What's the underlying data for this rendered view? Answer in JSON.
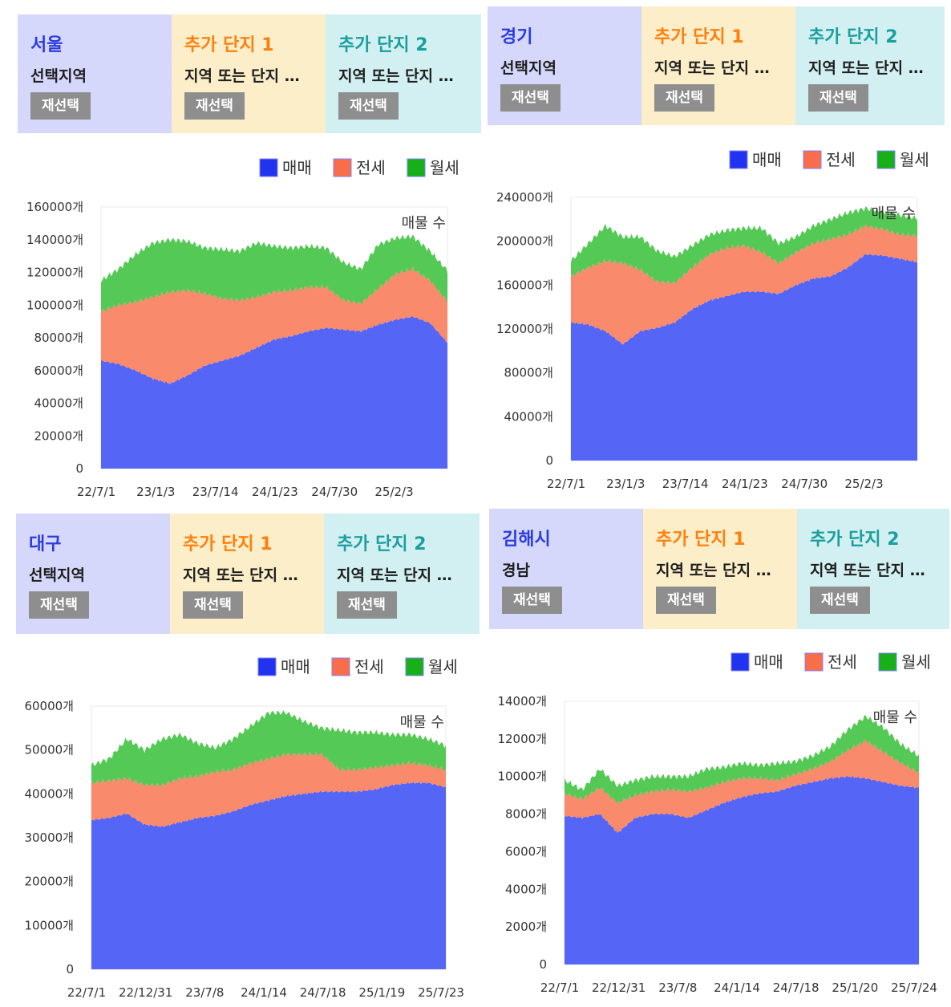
{
  "legend": [
    {
      "label": "매매",
      "color": "#2233f0"
    },
    {
      "label": "전세",
      "color": "#f86e4a"
    },
    {
      "label": "월세",
      "color": "#18b018"
    }
  ],
  "fill_colors": {
    "매매": "#5566f7",
    "전세": "#f98a6c",
    "월세": "#55c955"
  },
  "panels": [
    {
      "id": "seoul",
      "header": {
        "main": {
          "title": "서울",
          "subtitle": "선택지역",
          "button": "재선택",
          "title_color": "#2a3be0"
        },
        "add1": {
          "title": "추가 단지 1",
          "subtitle": "지역 또는 단지 …",
          "button": "재선택",
          "title_color": "#ff7f0e"
        },
        "add2": {
          "title": "추가 단지 2",
          "subtitle": "지역 또는 단지 …",
          "button": "재선택",
          "title_color": "#1a9e9e"
        }
      },
      "chart_data": {
        "type": "area",
        "stacked": true,
        "annotation": "매물 수",
        "y_ticks": [
          "160000개",
          "140000개",
          "120000개",
          "100000개",
          "80000개",
          "60000개",
          "40000개",
          "20000개",
          "0"
        ],
        "ylim": [
          0,
          160000
        ],
        "x_ticks": [
          "22/7/1",
          "23/1/3",
          "23/7/14",
          "24/1/23",
          "24/7/30",
          "25/2/3"
        ],
        "t": [
          0,
          6,
          12,
          18,
          24,
          30,
          36,
          42,
          48,
          54,
          60,
          66,
          72,
          78,
          84,
          90,
          96,
          102,
          108,
          114,
          120
        ],
        "series": [
          {
            "name": "매매",
            "values": [
              66000,
              64000,
              60000,
              55000,
              52000,
              57000,
              63000,
              66000,
              69000,
              74000,
              79000,
              81000,
              84000,
              86000,
              85000,
              84000,
              88000,
              91000,
              93000,
              89000,
              77000
            ]
          },
          {
            "name": "전세",
            "values": [
              30000,
              36000,
              42000,
              50000,
              56000,
              52000,
              44000,
              38000,
              34000,
              31000,
              29000,
              28000,
              27000,
              25000,
              18000,
              17000,
              22000,
              28000,
              29000,
              26000,
              25000
            ]
          },
          {
            "name": "월세",
            "values": [
              19000,
              22000,
              29000,
              33000,
              32000,
              30000,
              28000,
              30000,
              30000,
              33000,
              28000,
              26000,
              25000,
              24000,
              23000,
              21000,
              27000,
              22000,
              20000,
              18000,
              19000
            ]
          }
        ]
      }
    },
    {
      "id": "gyeonggi",
      "header": {
        "main": {
          "title": "경기",
          "subtitle": "선택지역",
          "button": "재선택",
          "title_color": "#2a3be0"
        },
        "add1": {
          "title": "추가 단지 1",
          "subtitle": "지역 또는 단지 …",
          "button": "재선택",
          "title_color": "#ff7f0e"
        },
        "add2": {
          "title": "추가 단지 2",
          "subtitle": "지역 또는 단지 …",
          "button": "재선택",
          "title_color": "#1a9e9e"
        }
      },
      "chart_data": {
        "type": "area",
        "stacked": true,
        "annotation": "매물 수",
        "y_ticks": [
          "240000개",
          "200000개",
          "160000개",
          "120000개",
          "80000개",
          "40000개",
          "0"
        ],
        "ylim": [
          0,
          240000
        ],
        "x_ticks": [
          "22/7/1",
          "23/1/3",
          "23/7/14",
          "24/1/23",
          "24/7/30",
          "25/2/3"
        ],
        "t": [
          0,
          6,
          12,
          18,
          24,
          30,
          36,
          42,
          48,
          54,
          60,
          66,
          72,
          78,
          84,
          90,
          96,
          102,
          108,
          114,
          120
        ],
        "series": [
          {
            "name": "매매",
            "values": [
              126000,
              124000,
              118000,
              106000,
              118000,
              121000,
              126000,
              138000,
              146000,
              150000,
              154000,
              154000,
              152000,
              160000,
              166000,
              168000,
              176000,
              188000,
              187000,
              184000,
              181000
            ]
          },
          {
            "name": "전세",
            "values": [
              42000,
              52000,
              64000,
              74000,
              56000,
              42000,
              36000,
              38000,
              42000,
              44000,
              42000,
              36000,
              28000,
              30000,
              32000,
              34000,
              30000,
              26000,
              24000,
              22000,
              24000
            ]
          },
          {
            "name": "월세",
            "values": [
              14000,
              22000,
              32000,
              24000,
              30000,
              28000,
              24000,
              20000,
              18000,
              16000,
              16000,
              22000,
              18000,
              14000,
              16000,
              18000,
              20000,
              16000,
              16000,
              18000,
              16000
            ]
          }
        ]
      }
    },
    {
      "id": "daegu",
      "header": {
        "main": {
          "title": "대구",
          "subtitle": "선택지역",
          "button": "재선택",
          "title_color": "#2a3be0"
        },
        "add1": {
          "title": "추가 단지 1",
          "subtitle": "지역 또는 단지 …",
          "button": "재선택",
          "title_color": "#ff7f0e"
        },
        "add2": {
          "title": "추가 단지 2",
          "subtitle": "지역 또는 단지 …",
          "button": "재선택",
          "title_color": "#1a9e9e"
        }
      },
      "chart_data": {
        "type": "area",
        "stacked": true,
        "annotation": "매물 수",
        "y_ticks": [
          "60000개",
          "50000개",
          "40000개",
          "30000개",
          "20000개",
          "10000개",
          "0"
        ],
        "ylim": [
          0,
          60000
        ],
        "x_ticks": [
          "22/7/1",
          "22/12/31",
          "23/7/8",
          "24/1/14",
          "24/7/18",
          "25/1/19",
          "25/7/23"
        ],
        "t": [
          0,
          6,
          12,
          18,
          24,
          30,
          36,
          42,
          48,
          54,
          60,
          66,
          72,
          78,
          84,
          90,
          96,
          102,
          108,
          114,
          120
        ],
        "series": [
          {
            "name": "매매",
            "values": [
              34000,
              34500,
              35500,
              33000,
              32500,
              33500,
              34500,
              35000,
              36000,
              37500,
              38500,
              39500,
              40000,
              40500,
              40500,
              40500,
              41000,
              42000,
              42500,
              42500,
              41500
            ]
          },
          {
            "name": "전세",
            "values": [
              8500,
              8500,
              8000,
              9000,
              9500,
              10000,
              9500,
              10000,
              9500,
              9500,
              9500,
              9500,
              9000,
              8500,
              5000,
              5000,
              5000,
              4500,
              4500,
              4000,
              4000
            ]
          },
          {
            "name": "월세",
            "values": [
              4000,
              5000,
              9000,
              8000,
              10500,
              10000,
              7500,
              5500,
              7000,
              8500,
              10500,
              9500,
              7500,
              6000,
              9000,
              8500,
              8000,
              7000,
              6500,
              6000,
              5500
            ]
          }
        ]
      }
    },
    {
      "id": "gimhae",
      "header": {
        "main": {
          "title": "김해시",
          "subtitle": "경남",
          "button": "재선택",
          "title_color": "#2a3be0"
        },
        "add1": {
          "title": "추가 단지 1",
          "subtitle": "지역 또는 단지 …",
          "button": "재선택",
          "title_color": "#ff7f0e"
        },
        "add2": {
          "title": "추가 단지 2",
          "subtitle": "지역 또는 단지 …",
          "button": "재선택",
          "title_color": "#1a9e9e"
        }
      },
      "chart_data": {
        "type": "area",
        "stacked": true,
        "annotation": "매물 수",
        "y_ticks": [
          "14000개",
          "12000개",
          "10000개",
          "8000개",
          "6000개",
          "4000개",
          "2000개",
          "0"
        ],
        "ylim": [
          0,
          14000
        ],
        "x_ticks": [
          "22/7/1",
          "22/12/31",
          "23/7/8",
          "24/1/14",
          "24/7/18",
          "25/1/20",
          "25/7/24"
        ],
        "t": [
          0,
          6,
          12,
          18,
          24,
          30,
          36,
          42,
          48,
          54,
          60,
          66,
          72,
          78,
          84,
          90,
          96,
          102,
          108,
          114,
          120
        ],
        "series": [
          {
            "name": "매매",
            "values": [
              7900,
              7800,
              8000,
              7000,
              7800,
              8000,
              8000,
              7800,
              8200,
              8600,
              8900,
              9100,
              9200,
              9500,
              9700,
              9900,
              10000,
              9900,
              9700,
              9500,
              9400
            ]
          },
          {
            "name": "전세",
            "values": [
              1200,
              1000,
              1400,
              1600,
              1200,
              1200,
              1300,
              1400,
              1200,
              1100,
              1000,
              800,
              600,
              600,
              700,
              900,
              1400,
              2000,
              1600,
              1200,
              800
            ]
          },
          {
            "name": "월세",
            "values": [
              700,
              500,
              1000,
              900,
              800,
              800,
              700,
              800,
              1000,
              800,
              800,
              700,
              900,
              700,
              700,
              800,
              1100,
              1300,
              1300,
              1000,
              900
            ]
          }
        ]
      }
    }
  ]
}
